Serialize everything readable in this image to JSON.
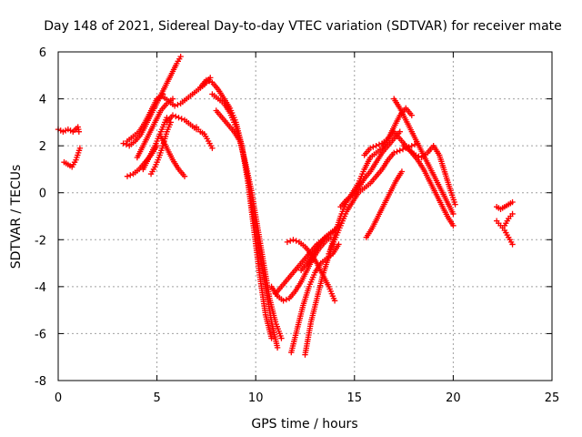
{
  "chart_data": {
    "type": "scatter",
    "title": "Day 148 of 2021, Sidereal Day-to-day VTEC variation (SDTVAR) for receiver mate",
    "xlabel": "GPS time / hours",
    "ylabel": "SDTVAR / TECUs",
    "xlim": [
      0,
      25
    ],
    "ylim": [
      -8,
      6
    ],
    "xticks": [
      0,
      5,
      10,
      15,
      20,
      25
    ],
    "yticks": [
      -8,
      -6,
      -4,
      -2,
      0,
      2,
      4,
      6
    ],
    "xtick_labels": [
      "0",
      "5",
      "10",
      "15",
      "20",
      "25"
    ],
    "ytick_labels": [
      "-8",
      "-6",
      "-4",
      "-2",
      "0",
      "2",
      "4",
      "6"
    ],
    "grid": true,
    "marker": "plus",
    "color": "#ff0000",
    "series": [
      {
        "x": [
          0.0,
          0.25,
          0.5,
          0.75,
          1.0,
          1.05
        ],
        "y": [
          2.7,
          2.6,
          2.7,
          2.6,
          2.8,
          2.6
        ]
      },
      {
        "x": [
          0.3,
          0.5,
          0.7,
          0.9,
          1.1
        ],
        "y": [
          1.3,
          1.2,
          1.1,
          1.4,
          1.9
        ]
      },
      {
        "x": [
          3.3,
          3.6,
          3.9,
          4.2,
          4.5,
          4.8,
          5.1,
          5.4,
          5.7,
          6.0,
          6.2
        ],
        "y": [
          2.1,
          2.0,
          2.2,
          2.5,
          3.0,
          3.5,
          4.0,
          4.5,
          5.0,
          5.5,
          5.8
        ]
      },
      {
        "x": [
          3.5,
          3.8,
          4.1,
          4.4,
          4.7,
          5.0,
          5.3
        ],
        "y": [
          2.2,
          2.4,
          2.6,
          3.0,
          3.5,
          4.0,
          4.2
        ]
      },
      {
        "x": [
          3.5,
          3.8,
          4.1,
          4.4,
          4.7,
          5.0
        ],
        "y": [
          0.7,
          0.8,
          1.0,
          1.3,
          1.6,
          2.0
        ]
      },
      {
        "x": [
          4.0,
          4.3,
          4.6,
          4.9,
          5.2,
          5.5,
          5.8
        ],
        "y": [
          1.5,
          2.0,
          2.5,
          3.0,
          3.5,
          3.8,
          4.0
        ]
      },
      {
        "x": [
          4.3,
          4.6,
          4.9,
          5.2,
          5.5
        ],
        "y": [
          1.0,
          1.5,
          2.0,
          2.6,
          3.2
        ]
      },
      {
        "x": [
          5.0,
          5.3,
          5.6,
          5.9,
          6.2,
          6.5,
          6.8,
          7.1,
          7.4,
          7.7
        ],
        "y": [
          4.0,
          4.1,
          3.9,
          3.7,
          3.8,
          4.0,
          4.2,
          4.4,
          4.6,
          4.9
        ]
      },
      {
        "x": [
          4.7,
          4.9,
          5.1,
          5.3,
          5.5,
          5.7
        ],
        "y": [
          0.8,
          1.1,
          1.5,
          2.0,
          2.6,
          3.0
        ]
      },
      {
        "x": [
          5.2,
          5.5,
          5.8,
          6.1,
          6.4
        ],
        "y": [
          2.4,
          1.9,
          1.4,
          1.0,
          0.7
        ]
      },
      {
        "x": [
          5.5,
          5.8,
          6.1,
          6.4,
          6.7,
          7.0
        ],
        "y": [
          3.0,
          3.3,
          3.2,
          3.1,
          2.9,
          2.7
        ]
      },
      {
        "x": [
          7.0,
          7.2,
          7.4,
          7.6,
          7.8
        ],
        "y": [
          2.8,
          2.6,
          2.5,
          2.2,
          1.9
        ]
      },
      {
        "x": [
          7.2,
          7.5,
          7.8,
          8.1,
          8.4,
          8.7,
          9.0,
          9.3,
          9.6,
          9.9,
          10.2,
          10.5,
          10.8,
          11.1
        ],
        "y": [
          4.5,
          4.8,
          4.7,
          4.4,
          4.0,
          3.6,
          3.0,
          2.0,
          0.5,
          -1.0,
          -2.5,
          -4.0,
          -5.5,
          -6.6
        ]
      },
      {
        "x": [
          7.8,
          8.1,
          8.4,
          8.7,
          9.0,
          9.3,
          9.6,
          9.9,
          10.2,
          10.5,
          10.8
        ],
        "y": [
          4.2,
          4.0,
          3.8,
          3.4,
          2.8,
          2.0,
          0.5,
          -1.5,
          -3.5,
          -5.2,
          -6.2
        ]
      },
      {
        "x": [
          8.0,
          8.3,
          8.6,
          8.9,
          9.2,
          9.5,
          9.8,
          10.1,
          10.4,
          10.7,
          11.0,
          11.3
        ],
        "y": [
          3.5,
          3.2,
          2.9,
          2.6,
          2.2,
          1.2,
          0.0,
          -1.5,
          -3.0,
          -4.5,
          -5.5,
          -6.2
        ]
      },
      {
        "x": [
          10.8,
          11.1,
          11.4,
          11.7,
          12.0,
          12.3,
          12.6,
          12.9,
          13.2,
          13.5,
          13.8
        ],
        "y": [
          -4.0,
          -4.4,
          -4.6,
          -4.5,
          -4.2,
          -3.8,
          -3.3,
          -2.8,
          -2.4,
          -2.1,
          -1.9
        ]
      },
      {
        "x": [
          11.0,
          11.3,
          11.6,
          11.9,
          12.2,
          12.5,
          12.8,
          13.1,
          13.4,
          13.7,
          14.0
        ],
        "y": [
          -4.3,
          -4.0,
          -3.7,
          -3.4,
          -3.1,
          -2.8,
          -2.5,
          -2.2,
          -2.0,
          -1.8,
          -1.6
        ]
      },
      {
        "x": [
          11.8,
          12.1,
          12.4,
          12.7,
          13.0,
          13.3,
          13.6,
          13.9,
          14.2
        ],
        "y": [
          -6.8,
          -5.8,
          -4.8,
          -4.0,
          -3.4,
          -3.0,
          -2.8,
          -2.6,
          -2.2
        ]
      },
      {
        "x": [
          11.6,
          11.9,
          12.2,
          12.5,
          12.8,
          13.1,
          13.4,
          13.7,
          14.0
        ],
        "y": [
          -2.1,
          -2.0,
          -2.1,
          -2.3,
          -2.6,
          -3.0,
          -3.5,
          -4.0,
          -4.6
        ]
      },
      {
        "x": [
          12.5,
          12.8,
          13.1,
          13.4,
          13.7,
          14.0,
          14.3,
          14.6,
          14.9,
          15.2,
          15.5,
          15.8,
          16.1,
          16.4,
          16.7,
          17.0,
          17.3,
          17.6,
          17.9
        ],
        "y": [
          -6.9,
          -5.5,
          -4.5,
          -3.5,
          -2.7,
          -1.8,
          -1.0,
          -0.4,
          0.0,
          0.4,
          1.0,
          1.5,
          1.7,
          1.9,
          2.3,
          2.8,
          3.3,
          3.6,
          3.3
        ]
      },
      {
        "x": [
          12.3,
          12.6,
          12.9,
          13.2,
          13.5,
          13.8,
          14.1
        ],
        "y": [
          -3.3,
          -3.0,
          -2.6,
          -2.2,
          -1.9,
          -1.7,
          -1.5
        ]
      },
      {
        "x": [
          13.7,
          14.0,
          14.3,
          14.6,
          14.9,
          15.2,
          15.5,
          15.8,
          16.1,
          16.4,
          16.7,
          17.0,
          17.3,
          17.6,
          17.9,
          18.2
        ],
        "y": [
          -2.6,
          -2.0,
          -1.4,
          -0.8,
          -0.4,
          0.0,
          0.2,
          0.4,
          0.7,
          1.0,
          1.4,
          1.7,
          1.8,
          1.9,
          2.0,
          2.1
        ]
      },
      {
        "x": [
          14.3,
          14.6,
          14.9,
          15.2,
          15.5,
          15.8,
          16.1,
          16.4,
          16.7,
          17.0,
          17.3
        ],
        "y": [
          -0.6,
          -0.3,
          -0.1,
          0.2,
          0.6,
          0.9,
          1.3,
          1.7,
          2.0,
          2.3,
          2.6
        ]
      },
      {
        "x": [
          15.5,
          15.8,
          16.1,
          16.4,
          16.7,
          17.0,
          17.3,
          17.6,
          17.9,
          18.2,
          18.5,
          18.8,
          19.1,
          19.4,
          19.7,
          20.0
        ],
        "y": [
          1.6,
          1.9,
          2.0,
          2.1,
          2.3,
          2.6,
          2.3,
          2.0,
          1.7,
          1.4,
          1.0,
          0.5,
          0.0,
          -0.5,
          -1.0,
          -1.4
        ]
      },
      {
        "x": [
          15.6,
          15.9,
          16.2,
          16.5,
          16.8,
          17.1,
          17.4
        ],
        "y": [
          -1.9,
          -1.5,
          -1.0,
          -0.5,
          0.0,
          0.5,
          0.9
        ]
      },
      {
        "x": [
          17.0,
          17.3,
          17.6,
          17.9,
          18.2,
          18.5,
          18.8,
          19.1,
          19.4,
          19.7,
          20.0
        ],
        "y": [
          4.0,
          3.6,
          3.1,
          2.6,
          2.1,
          1.6,
          1.1,
          0.6,
          0.1,
          -0.4,
          -0.9
        ]
      },
      {
        "x": [
          17.5,
          17.8,
          18.1,
          18.4,
          18.7,
          19.0,
          19.3,
          19.6,
          19.9,
          20.1
        ],
        "y": [
          2.0,
          1.8,
          1.6,
          1.5,
          1.7,
          2.0,
          1.6,
          0.8,
          0.0,
          -0.5
        ]
      },
      {
        "x": [
          22.2,
          22.4,
          22.6,
          22.8,
          23.0
        ],
        "y": [
          -0.6,
          -0.7,
          -0.6,
          -0.5,
          -0.4
        ]
      },
      {
        "x": [
          22.2,
          22.4,
          22.6,
          22.8,
          23.0
        ],
        "y": [
          -1.2,
          -1.4,
          -1.6,
          -1.9,
          -2.2
        ]
      },
      {
        "x": [
          22.6,
          22.8,
          23.0
        ],
        "y": [
          -1.4,
          -1.1,
          -0.9
        ]
      }
    ]
  }
}
